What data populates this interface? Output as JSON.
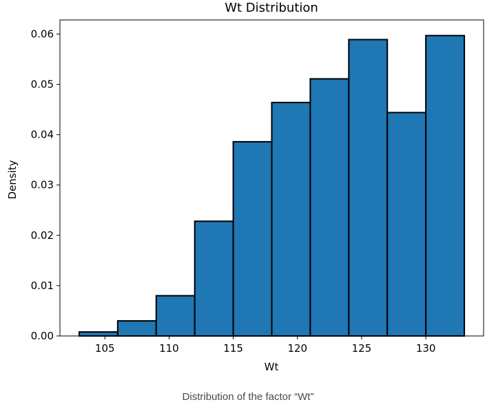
{
  "chart_data": {
    "type": "bar",
    "title": "Wt Distribution",
    "xlabel": "Wt",
    "ylabel": "Density",
    "xlim": [
      101.5,
      134.5
    ],
    "ylim": [
      0,
      0.0628
    ],
    "bin_edges": [
      103,
      106,
      109,
      112,
      115,
      118,
      121,
      124,
      127,
      130,
      133
    ],
    "values": [
      0.0008,
      0.003,
      0.008,
      0.0228,
      0.0386,
      0.0464,
      0.0511,
      0.0589,
      0.0444,
      0.0597
    ],
    "xticks": [
      105,
      110,
      115,
      120,
      125,
      130
    ],
    "xtick_labels": [
      "105",
      "110",
      "115",
      "120",
      "125",
      "130"
    ],
    "yticks": [
      0,
      0.01,
      0.02,
      0.03,
      0.04,
      0.05,
      0.06
    ],
    "ytick_labels": [
      "0.00",
      "0.01",
      "0.02",
      "0.03",
      "0.04",
      "0.05",
      "0.06"
    ],
    "bar_color": "#1f77b4",
    "edge_color": "#000000",
    "grid": false
  },
  "caption": "Distribution of the factor “Wt”"
}
